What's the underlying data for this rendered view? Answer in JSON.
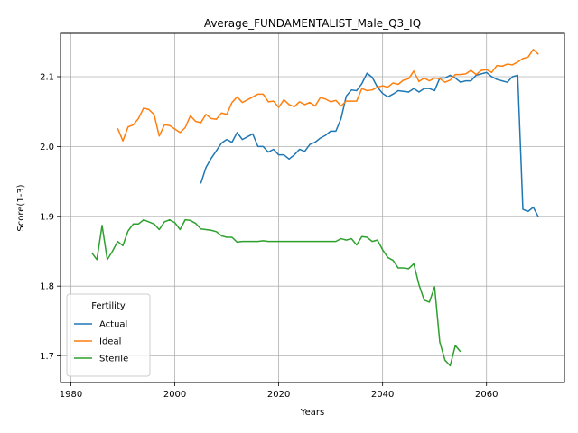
{
  "chart_data": {
    "type": "line",
    "title": "Average_FUNDAMENTALIST_Male_Q3_IQ",
    "xlabel": "Years",
    "ylabel": "Score(1-3)",
    "xlim": [
      1978,
      2075
    ],
    "ylim": [
      1.662,
      2.162
    ],
    "xticks": [
      1980,
      2000,
      2020,
      2040,
      2060
    ],
    "yticks": [
      1.7,
      1.8,
      1.9,
      2.0,
      2.1
    ],
    "grid": true,
    "legend": {
      "title": "Fertility",
      "position": "lower-left"
    },
    "series": [
      {
        "name": "Actual",
        "color": "#1f77b4",
        "x": [
          2005,
          2006,
          2007,
          2008,
          2009,
          2010,
          2011,
          2012,
          2013,
          2014,
          2015,
          2016,
          2017,
          2018,
          2019,
          2020,
          2021,
          2022,
          2023,
          2024,
          2025,
          2026,
          2027,
          2028,
          2029,
          2030,
          2031,
          2032,
          2033,
          2034,
          2035,
          2036,
          2037,
          2038,
          2039,
          2040,
          2041,
          2042,
          2043,
          2044,
          2045,
          2046,
          2047,
          2048,
          2049,
          2050,
          2051,
          2052,
          2053,
          2054,
          2055,
          2056,
          2057,
          2058,
          2059,
          2060,
          2061,
          2062,
          2063,
          2064,
          2065,
          2066,
          2067,
          2068,
          2069,
          2070
        ],
        "y": [
          1.947,
          1.97,
          1.983,
          1.994,
          2.005,
          2.01,
          2.006,
          2.02,
          2.01,
          2.014,
          2.018,
          2.0,
          2.0,
          1.992,
          1.996,
          1.988,
          1.988,
          1.982,
          1.988,
          1.996,
          1.993,
          2.003,
          2.006,
          2.012,
          2.016,
          2.022,
          2.022,
          2.04,
          2.072,
          2.081,
          2.08,
          2.09,
          2.105,
          2.099,
          2.085,
          2.076,
          2.071,
          2.075,
          2.08,
          2.079,
          2.078,
          2.083,
          2.078,
          2.083,
          2.083,
          2.08,
          2.098,
          2.098,
          2.102,
          2.098,
          2.092,
          2.094,
          2.094,
          2.102,
          2.104,
          2.106,
          2.1,
          2.096,
          2.094,
          2.092,
          2.1,
          2.102,
          1.91,
          1.907,
          1.913,
          1.899
        ]
      },
      {
        "name": "Ideal",
        "color": "#ff7f0e",
        "x": [
          1989,
          1990,
          1991,
          1992,
          1993,
          1994,
          1995,
          1996,
          1997,
          1998,
          1999,
          2000,
          2001,
          2002,
          2003,
          2004,
          2005,
          2006,
          2007,
          2008,
          2009,
          2010,
          2011,
          2012,
          2013,
          2014,
          2015,
          2016,
          2017,
          2018,
          2019,
          2020,
          2021,
          2022,
          2023,
          2024,
          2025,
          2026,
          2027,
          2028,
          2029,
          2030,
          2031,
          2032,
          2033,
          2034,
          2035,
          2036,
          2037,
          2038,
          2039,
          2040,
          2041,
          2042,
          2043,
          2044,
          2045,
          2046,
          2047,
          2048,
          2049,
          2050,
          2051,
          2052,
          2053,
          2054,
          2055,
          2056,
          2057,
          2058,
          2059,
          2060,
          2061,
          2062,
          2063,
          2064,
          2065,
          2066,
          2067,
          2068,
          2069,
          2070
        ],
        "y": [
          2.026,
          2.008,
          2.028,
          2.031,
          2.04,
          2.055,
          2.053,
          2.046,
          2.015,
          2.031,
          2.03,
          2.025,
          2.02,
          2.027,
          2.044,
          2.036,
          2.034,
          2.046,
          2.04,
          2.039,
          2.048,
          2.046,
          2.063,
          2.071,
          2.063,
          2.067,
          2.071,
          2.075,
          2.075,
          2.064,
          2.065,
          2.056,
          2.067,
          2.06,
          2.057,
          2.064,
          2.06,
          2.063,
          2.058,
          2.07,
          2.068,
          2.064,
          2.066,
          2.058,
          2.065,
          2.065,
          2.065,
          2.083,
          2.08,
          2.081,
          2.085,
          2.087,
          2.085,
          2.091,
          2.089,
          2.095,
          2.097,
          2.108,
          2.093,
          2.098,
          2.094,
          2.098,
          2.097,
          2.092,
          2.095,
          2.103,
          2.103,
          2.104,
          2.109,
          2.103,
          2.109,
          2.11,
          2.106,
          2.116,
          2.115,
          2.118,
          2.117,
          2.121,
          2.126,
          2.128,
          2.139,
          2.132
        ]
      },
      {
        "name": "Sterile",
        "color": "#2ca02c",
        "x": [
          1984,
          1985,
          1986,
          1987,
          1988,
          1989,
          1990,
          1991,
          1992,
          1993,
          1994,
          1995,
          1996,
          1997,
          1998,
          1999,
          2000,
          2001,
          2002,
          2003,
          2004,
          2005,
          2006,
          2007,
          2008,
          2009,
          2010,
          2011,
          2012,
          2013,
          2014,
          2015,
          2016,
          2017,
          2018,
          2019,
          2020,
          2021,
          2022,
          2023,
          2024,
          2025,
          2026,
          2027,
          2028,
          2029,
          2030,
          2031,
          2032,
          2033,
          2034,
          2035,
          2036,
          2037,
          2038,
          2039,
          2040,
          2041,
          2042,
          2043,
          2044,
          2045,
          2046,
          2047,
          2048,
          2049,
          2050,
          2051,
          2052,
          2053,
          2054,
          2055
        ],
        "y": [
          1.848,
          1.838,
          1.887,
          1.838,
          1.85,
          1.864,
          1.858,
          1.879,
          1.889,
          1.889,
          1.895,
          1.892,
          1.889,
          1.881,
          1.892,
          1.895,
          1.891,
          1.881,
          1.895,
          1.894,
          1.89,
          1.882,
          1.881,
          1.88,
          1.878,
          1.872,
          1.87,
          1.87,
          1.863,
          1.864,
          1.864,
          1.864,
          1.864,
          1.865,
          1.864,
          1.864,
          1.864,
          1.864,
          1.864,
          1.864,
          1.864,
          1.864,
          1.864,
          1.864,
          1.864,
          1.864,
          1.864,
          1.864,
          1.868,
          1.866,
          1.868,
          1.859,
          1.871,
          1.87,
          1.864,
          1.866,
          1.852,
          1.841,
          1.837,
          1.826,
          1.826,
          1.825,
          1.832,
          1.802,
          1.78,
          1.777,
          1.799,
          1.72,
          1.694,
          1.686,
          1.715,
          1.706
        ]
      }
    ]
  }
}
